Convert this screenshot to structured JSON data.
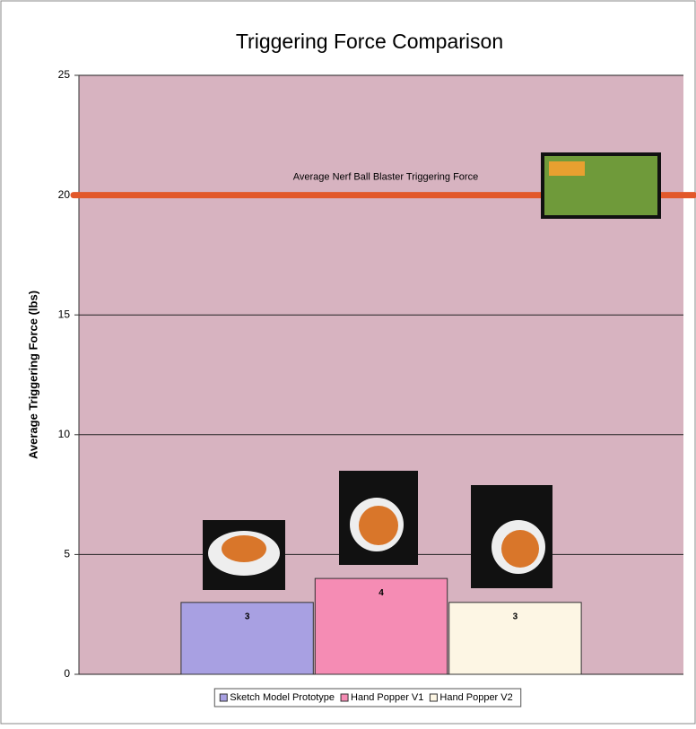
{
  "chart_data": {
    "type": "bar",
    "title": "Triggering Force Comparison",
    "y_label": "Average Triggering Force (lbs)",
    "categories": [
      null
    ],
    "series": [
      {
        "name": "Sketch Model Prototype",
        "color": "#a8a0e2",
        "values": [
          3
        ]
      },
      {
        "name": "Hand Popper V1",
        "color": "#f58cb4",
        "values": [
          4
        ]
      },
      {
        "name": "Hand Popper V2",
        "color": "#fdf6e4",
        "values": [
          3
        ]
      }
    ],
    "reference_lines": [
      {
        "value": 20,
        "label": "Average Nerf Ball Blaster Triggering Force",
        "color": "#e2582a"
      }
    ],
    "ylim": [
      0,
      25
    ],
    "yticks": [
      0,
      5,
      10,
      15,
      20,
      25
    ],
    "grid": true,
    "legend": "bottom"
  }
}
